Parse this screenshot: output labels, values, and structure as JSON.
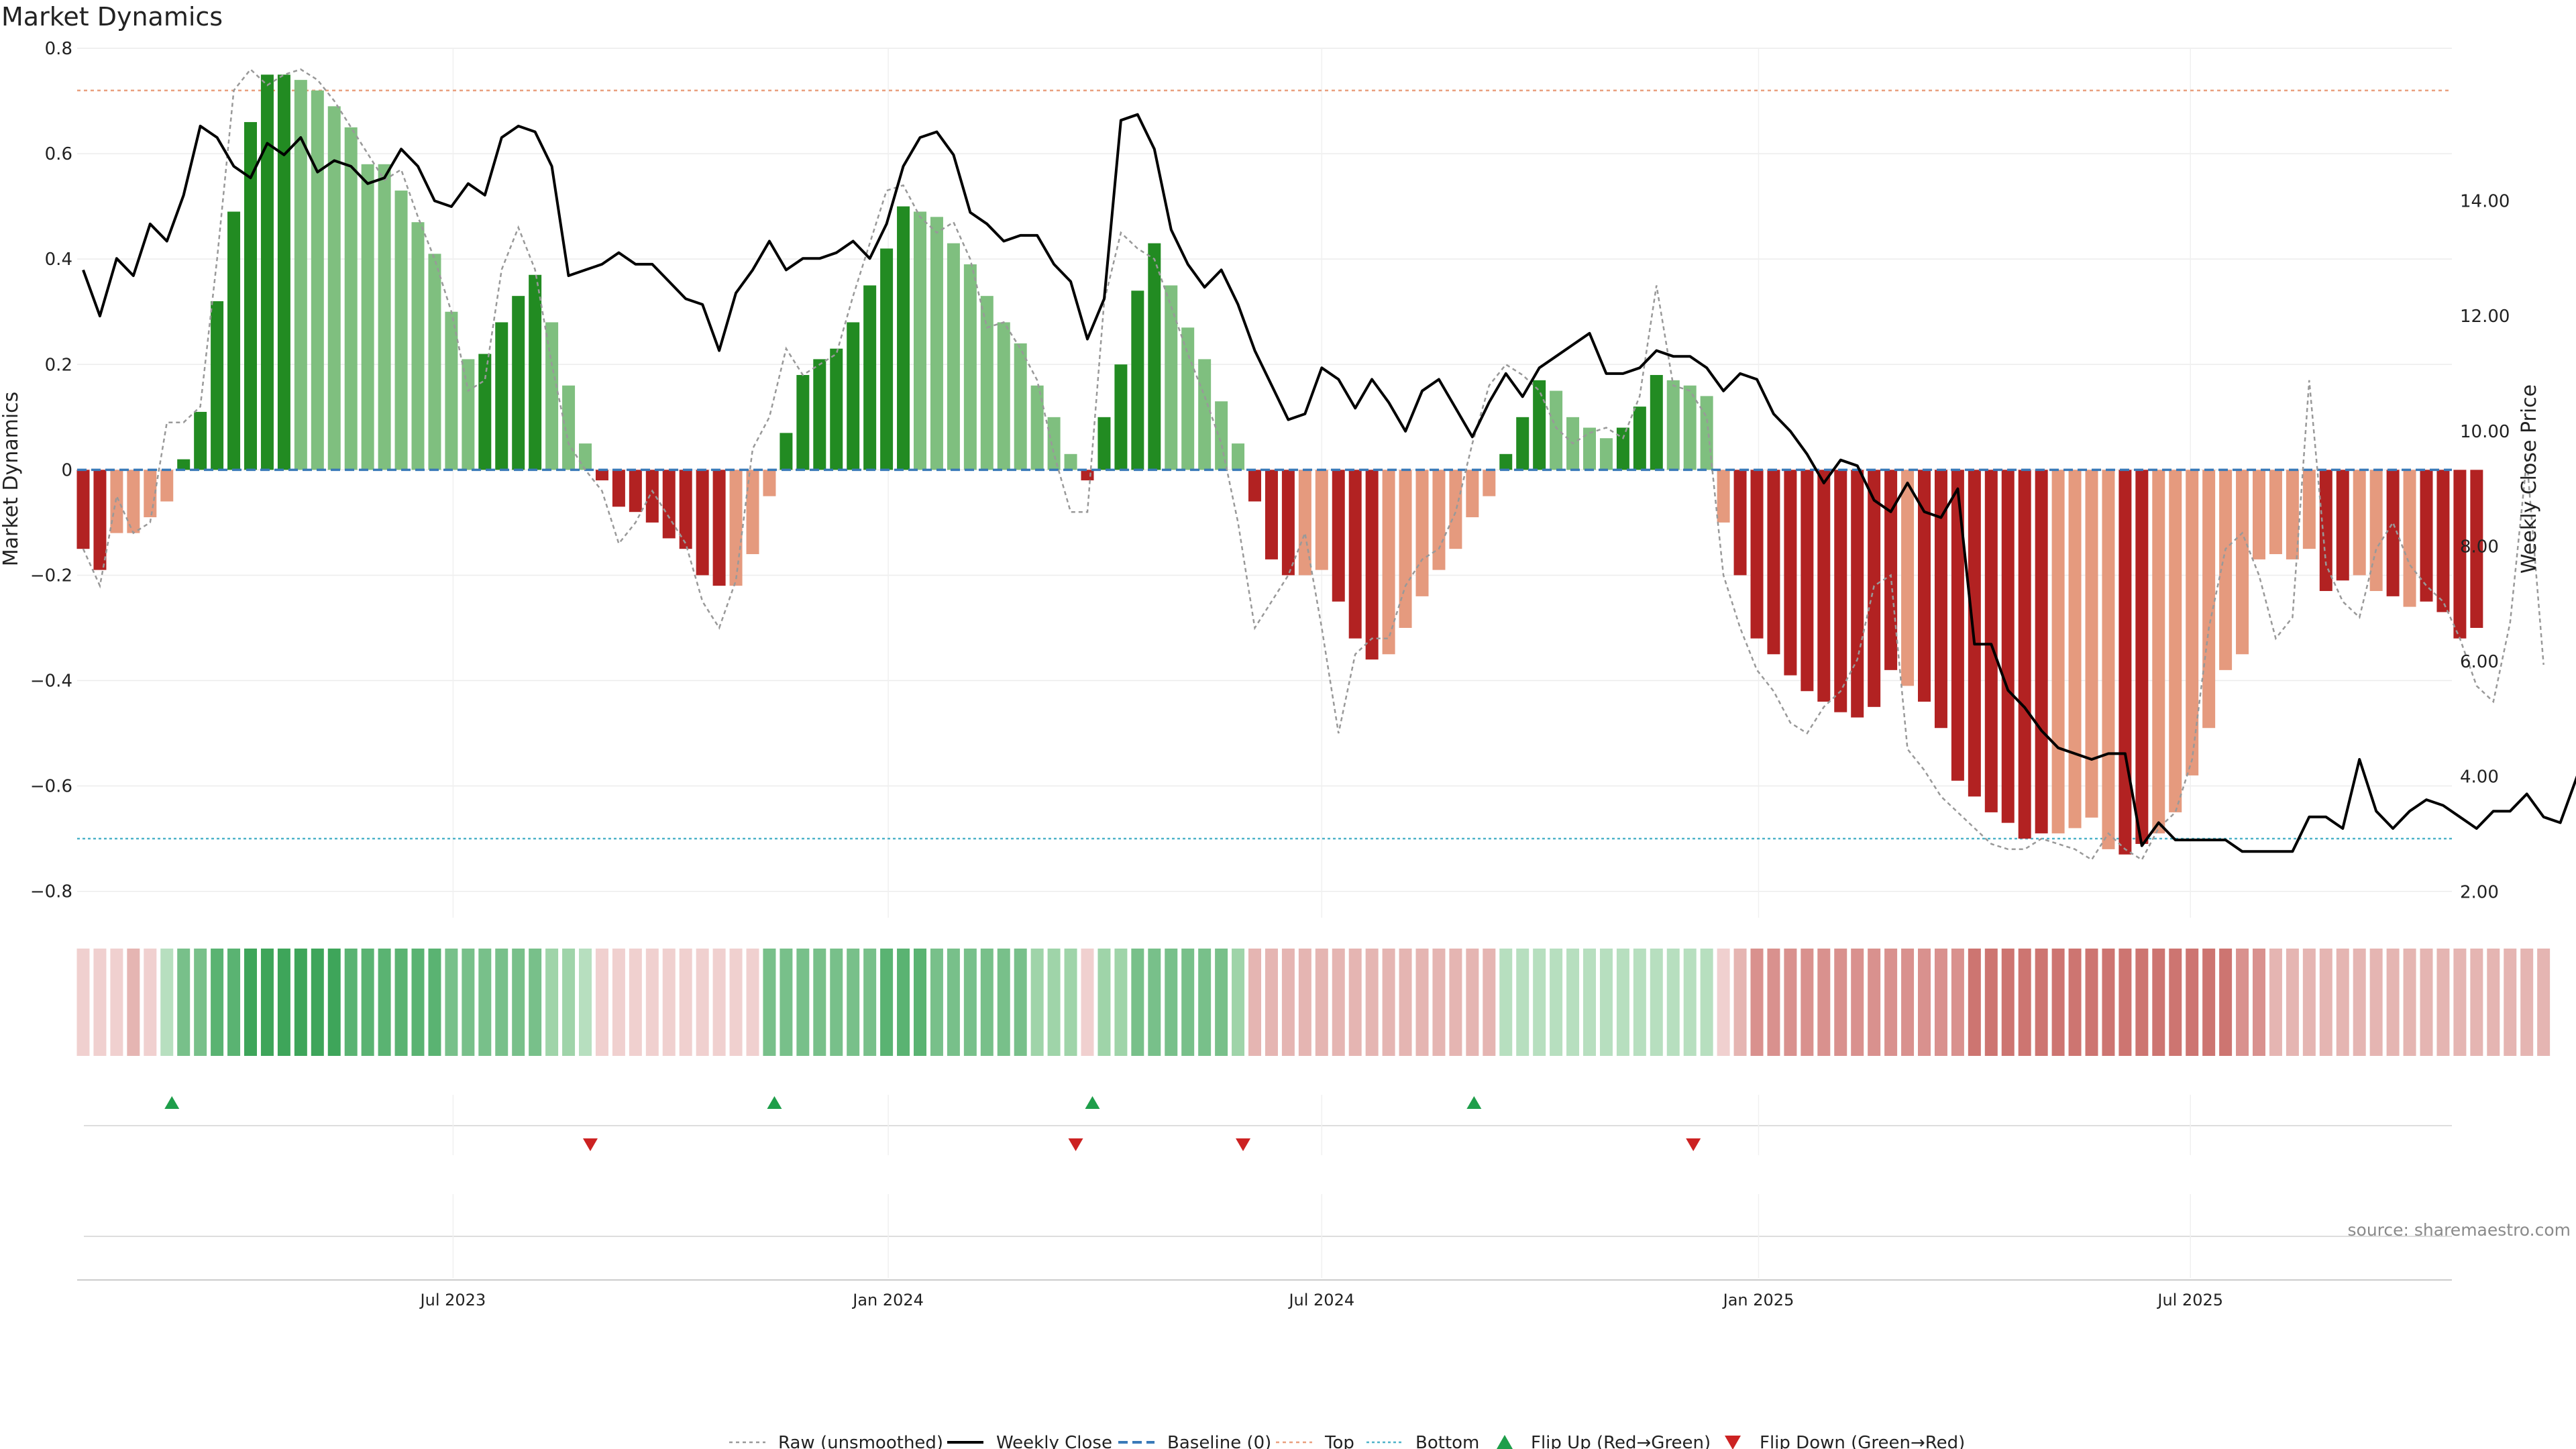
{
  "chart_data": {
    "type": "bar",
    "title": "Market Dynamics",
    "ylabel_left": "Market Dynamics",
    "ylabel_right": "Weekly Close Price",
    "source": "source: sharemaestro.com",
    "ylim_left": [
      -0.85,
      0.8
    ],
    "ylim_right": [
      1.55,
      16.65
    ],
    "yticks_left": [
      "0.8",
      "0.6",
      "0.4",
      "0.2",
      "0",
      "−0.2",
      "−0.4",
      "−0.6",
      "−0.8"
    ],
    "yticks_left_values": [
      0.8,
      0.6,
      0.4,
      0.2,
      0,
      -0.2,
      -0.4,
      -0.6,
      -0.8
    ],
    "yticks_right": [
      "14.00",
      "12.00",
      "10.00",
      "8.00",
      "6.00",
      "4.00",
      "2.00"
    ],
    "yticks_right_values": [
      14,
      12,
      10,
      8,
      6,
      4,
      2
    ],
    "x_tick_labels": [
      "Jul 2023",
      "Jan 2024",
      "Jul 2024",
      "Jan 2025",
      "Jul 2025"
    ],
    "x_tick_week_index": [
      22.1,
      48.1,
      74.0,
      100.1,
      125.9
    ],
    "top_level": 0.72,
    "bottom_level": -0.7,
    "baseline": 0,
    "colors": {
      "strong_green": "#228b22",
      "light_green": "#7fbf7f",
      "strong_red": "#b22222",
      "light_red": "#e59a7e",
      "weekly_close": "#000000",
      "raw": "#999999",
      "baseline": "#3a7ab8",
      "top": "#e9a07f",
      "bottom": "#4fb3c9",
      "flip_up": "#1e9e4a",
      "flip_down": "#cc2222"
    },
    "bar_values": [
      -0.15,
      -0.19,
      -0.12,
      -0.12,
      -0.09,
      -0.06,
      0.02,
      0.11,
      0.32,
      0.49,
      0.66,
      0.75,
      0.75,
      0.74,
      0.72,
      0.69,
      0.65,
      0.58,
      0.58,
      0.53,
      0.47,
      0.41,
      0.3,
      0.21,
      0.22,
      0.28,
      0.33,
      0.37,
      0.28,
      0.16,
      0.05,
      -0.02,
      -0.07,
      -0.08,
      -0.1,
      -0.13,
      -0.15,
      -0.2,
      -0.22,
      -0.22,
      -0.16,
      -0.05,
      0.07,
      0.18,
      0.21,
      0.23,
      0.28,
      0.35,
      0.42,
      0.5,
      0.49,
      0.48,
      0.43,
      0.39,
      0.33,
      0.28,
      0.24,
      0.16,
      0.1,
      0.03,
      -0.02,
      0.1,
      0.2,
      0.34,
      0.43,
      0.35,
      0.27,
      0.21,
      0.13,
      0.05,
      -0.06,
      -0.17,
      -0.2,
      -0.2,
      -0.19,
      -0.25,
      -0.32,
      -0.36,
      -0.35,
      -0.3,
      -0.24,
      -0.19,
      -0.15,
      -0.09,
      -0.05,
      0.03,
      0.1,
      0.17,
      0.15,
      0.1,
      0.08,
      0.06,
      0.08,
      0.12,
      0.18,
      0.17,
      0.16,
      0.14,
      -0.1,
      -0.2,
      -0.32,
      -0.35,
      -0.39,
      -0.42,
      -0.44,
      -0.46,
      -0.47,
      -0.45,
      -0.38,
      -0.41,
      -0.44,
      -0.49,
      -0.59,
      -0.62,
      -0.65,
      -0.67,
      -0.7,
      -0.69,
      -0.69,
      -0.68,
      -0.66,
      -0.72,
      -0.73,
      -0.71,
      -0.69,
      -0.65,
      -0.58,
      -0.49,
      -0.38,
      -0.35,
      -0.17,
      -0.16,
      -0.17,
      -0.15,
      -0.23,
      -0.21,
      -0.2,
      -0.23,
      -0.24,
      -0.26,
      -0.25,
      -0.27,
      -0.32,
      -0.3
    ],
    "bar_shades": [
      "S",
      "S",
      "L",
      "L",
      "L",
      "L",
      "S",
      "S",
      "S",
      "S",
      "S",
      "S",
      "S",
      "L",
      "L",
      "L",
      "L",
      "L",
      "L",
      "L",
      "L",
      "L",
      "L",
      "L",
      "S",
      "S",
      "S",
      "S",
      "L",
      "L",
      "L",
      "S",
      "S",
      "S",
      "S",
      "S",
      "S",
      "S",
      "S",
      "L",
      "L",
      "L",
      "S",
      "S",
      "S",
      "S",
      "S",
      "S",
      "S",
      "S",
      "L",
      "L",
      "L",
      "L",
      "L",
      "L",
      "L",
      "L",
      "L",
      "L",
      "S",
      "S",
      "S",
      "S",
      "S",
      "L",
      "L",
      "L",
      "L",
      "L",
      "S",
      "S",
      "S",
      "L",
      "L",
      "S",
      "S",
      "S",
      "L",
      "L",
      "L",
      "L",
      "L",
      "L",
      "L",
      "S",
      "S",
      "S",
      "L",
      "L",
      "L",
      "L",
      "S",
      "S",
      "S",
      "L",
      "L",
      "L",
      "L",
      "S",
      "S",
      "S",
      "S",
      "S",
      "S",
      "S",
      "S",
      "S",
      "S",
      "L",
      "S",
      "S",
      "S",
      "S",
      "S",
      "S",
      "S",
      "S",
      "L",
      "L",
      "L",
      "L",
      "S",
      "S",
      "L",
      "L",
      "L",
      "L",
      "L",
      "L",
      "L",
      "L",
      "L",
      "L",
      "S",
      "S",
      "L",
      "L",
      "S",
      "L",
      "S",
      "S",
      "S",
      "S",
      "S",
      "S",
      "L",
      "S",
      "S"
    ],
    "raw_values": [
      -0.15,
      -0.22,
      -0.05,
      -0.12,
      -0.1,
      0.09,
      0.09,
      0.12,
      0.4,
      0.72,
      0.76,
      0.73,
      0.75,
      0.76,
      0.74,
      0.7,
      0.65,
      0.6,
      0.55,
      0.57,
      0.48,
      0.4,
      0.3,
      0.15,
      0.17,
      0.38,
      0.46,
      0.38,
      0.2,
      0.05,
      0.0,
      -0.04,
      -0.14,
      -0.1,
      -0.04,
      -0.09,
      -0.14,
      -0.25,
      -0.3,
      -0.21,
      0.04,
      0.1,
      0.23,
      0.18,
      0.2,
      0.22,
      0.33,
      0.43,
      0.53,
      0.54,
      0.48,
      0.45,
      0.47,
      0.4,
      0.27,
      0.28,
      0.23,
      0.17,
      0.03,
      -0.08,
      -0.08,
      0.32,
      0.45,
      0.42,
      0.4,
      0.31,
      0.22,
      0.14,
      0.05,
      -0.1,
      -0.3,
      -0.25,
      -0.2,
      -0.12,
      -0.3,
      -0.5,
      -0.35,
      -0.32,
      -0.32,
      -0.22,
      -0.17,
      -0.15,
      -0.08,
      0.05,
      0.16,
      0.2,
      0.18,
      0.15,
      0.08,
      0.05,
      0.07,
      0.08,
      0.06,
      0.14,
      0.35,
      0.16,
      0.15,
      0.1,
      -0.2,
      -0.3,
      -0.38,
      -0.42,
      -0.48,
      -0.5,
      -0.45,
      -0.42,
      -0.36,
      -0.22,
      -0.2,
      -0.53,
      -0.57,
      -0.62,
      -0.65,
      -0.68,
      -0.71,
      -0.72,
      -0.72,
      -0.7,
      -0.71,
      -0.72,
      -0.74,
      -0.69,
      -0.72,
      -0.74,
      -0.68,
      -0.65,
      -0.55,
      -0.3,
      -0.15,
      -0.12,
      -0.2,
      -0.32,
      -0.28,
      0.17,
      -0.18,
      -0.25,
      -0.28,
      -0.15,
      -0.1,
      -0.18,
      -0.22,
      -0.25,
      -0.32,
      -0.41,
      -0.44,
      -0.29,
      0.02,
      -0.37
    ],
    "close_values": [
      12.8,
      12.0,
      13.0,
      12.7,
      13.6,
      13.3,
      14.1,
      15.3,
      15.1,
      14.6,
      14.4,
      15.0,
      14.8,
      15.1,
      14.5,
      14.7,
      14.6,
      14.3,
      14.4,
      14.9,
      14.6,
      14.0,
      13.9,
      14.3,
      14.1,
      15.1,
      15.3,
      15.2,
      14.6,
      12.7,
      12.8,
      12.9,
      13.1,
      12.9,
      12.9,
      12.6,
      12.3,
      12.2,
      11.4,
      12.4,
      12.8,
      13.3,
      12.8,
      13.0,
      13.0,
      13.1,
      13.3,
      13.0,
      13.6,
      14.6,
      15.1,
      15.2,
      14.8,
      13.8,
      13.6,
      13.3,
      13.4,
      13.4,
      12.9,
      12.6,
      11.6,
      12.3,
      15.4,
      15.5,
      14.9,
      13.5,
      12.9,
      12.5,
      12.8,
      12.2,
      11.4,
      10.8,
      10.2,
      10.3,
      11.1,
      10.9,
      10.4,
      10.9,
      10.5,
      10.0,
      10.7,
      10.9,
      10.4,
      9.9,
      10.5,
      11.0,
      10.6,
      11.1,
      11.3,
      11.5,
      11.7,
      11.0,
      11.0,
      11.1,
      11.4,
      11.3,
      11.3,
      11.1,
      10.7,
      11.0,
      10.9,
      10.3,
      10.0,
      9.6,
      9.1,
      9.5,
      9.4,
      8.8,
      8.6,
      9.1,
      8.6,
      8.5,
      9.0,
      6.3,
      6.3,
      5.5,
      5.2,
      4.8,
      4.5,
      4.4,
      4.3,
      4.4,
      4.4,
      2.8,
      3.2,
      2.9,
      2.9,
      2.9,
      2.9,
      2.7,
      2.7,
      2.7,
      2.7,
      3.3,
      3.3,
      3.1,
      4.3,
      3.4,
      3.1,
      3.4,
      3.6,
      3.5,
      3.3,
      3.1,
      3.4,
      3.4,
      3.7,
      3.3,
      3.2,
      4.0,
      3.6
    ],
    "regime_strip": {
      "cells": [
        [
          "r",
          1
        ],
        [
          "r",
          1
        ],
        [
          "r",
          1
        ],
        [
          "r",
          2
        ],
        [
          "r",
          1
        ],
        [
          "g",
          1
        ],
        [
          "g",
          3
        ],
        [
          "g",
          3
        ],
        [
          "g",
          4
        ],
        [
          "g",
          4
        ],
        [
          "g",
          5
        ],
        [
          "g",
          5
        ],
        [
          "g",
          5
        ],
        [
          "g",
          5
        ],
        [
          "g",
          5
        ],
        [
          "g",
          5
        ],
        [
          "g",
          4
        ],
        [
          "g",
          4
        ],
        [
          "g",
          4
        ],
        [
          "g",
          4
        ],
        [
          "g",
          4
        ],
        [
          "g",
          4
        ],
        [
          "g",
          3
        ],
        [
          "g",
          3
        ],
        [
          "g",
          3
        ],
        [
          "g",
          3
        ],
        [
          "g",
          3
        ],
        [
          "g",
          3
        ],
        [
          "g",
          2
        ],
        [
          "g",
          2
        ],
        [
          "g",
          1
        ],
        [
          "r",
          1
        ],
        [
          "r",
          1
        ],
        [
          "r",
          1
        ],
        [
          "r",
          1
        ],
        [
          "r",
          1
        ],
        [
          "r",
          1
        ],
        [
          "r",
          1
        ],
        [
          "r",
          1
        ],
        [
          "r",
          1
        ],
        [
          "r",
          1
        ],
        [
          "g",
          3
        ],
        [
          "g",
          3
        ],
        [
          "g",
          3
        ],
        [
          "g",
          3
        ],
        [
          "g",
          3
        ],
        [
          "g",
          3
        ],
        [
          "g",
          3
        ],
        [
          "g",
          4
        ],
        [
          "g",
          4
        ],
        [
          "g",
          4
        ],
        [
          "g",
          3
        ],
        [
          "g",
          3
        ],
        [
          "g",
          3
        ],
        [
          "g",
          3
        ],
        [
          "g",
          3
        ],
        [
          "g",
          3
        ],
        [
          "g",
          2
        ],
        [
          "g",
          2
        ],
        [
          "g",
          2
        ],
        [
          "r",
          1
        ],
        [
          "g",
          2
        ],
        [
          "g",
          2
        ],
        [
          "g",
          3
        ],
        [
          "g",
          3
        ],
        [
          "g",
          3
        ],
        [
          "g",
          3
        ],
        [
          "g",
          3
        ],
        [
          "g",
          3
        ],
        [
          "g",
          2
        ],
        [
          "r",
          2
        ],
        [
          "r",
          2
        ],
        [
          "r",
          2
        ],
        [
          "r",
          2
        ],
        [
          "r",
          2
        ],
        [
          "r",
          2
        ],
        [
          "r",
          2
        ],
        [
          "r",
          2
        ],
        [
          "r",
          2
        ],
        [
          "r",
          2
        ],
        [
          "r",
          2
        ],
        [
          "r",
          2
        ],
        [
          "r",
          2
        ],
        [
          "r",
          2
        ],
        [
          "r",
          2
        ],
        [
          "g",
          1
        ],
        [
          "g",
          1
        ],
        [
          "g",
          1
        ],
        [
          "g",
          1
        ],
        [
          "g",
          1
        ],
        [
          "g",
          1
        ],
        [
          "g",
          1
        ],
        [
          "g",
          1
        ],
        [
          "g",
          1
        ],
        [
          "g",
          1
        ],
        [
          "g",
          1
        ],
        [
          "g",
          1
        ],
        [
          "g",
          1
        ],
        [
          "r",
          1
        ],
        [
          "r",
          2
        ],
        [
          "r",
          3
        ],
        [
          "r",
          3
        ],
        [
          "r",
          3
        ],
        [
          "r",
          3
        ],
        [
          "r",
          3
        ],
        [
          "r",
          3
        ],
        [
          "r",
          3
        ],
        [
          "r",
          3
        ],
        [
          "r",
          3
        ],
        [
          "r",
          3
        ],
        [
          "r",
          3
        ],
        [
          "r",
          3
        ],
        [
          "r",
          3
        ],
        [
          "r",
          4
        ],
        [
          "r",
          4
        ],
        [
          "r",
          4
        ],
        [
          "r",
          4
        ],
        [
          "r",
          4
        ],
        [
          "r",
          4
        ],
        [
          "r",
          4
        ],
        [
          "r",
          4
        ],
        [
          "r",
          4
        ],
        [
          "r",
          4
        ],
        [
          "r",
          4
        ],
        [
          "r",
          4
        ],
        [
          "r",
          4
        ],
        [
          "r",
          4
        ],
        [
          "r",
          4
        ],
        [
          "r",
          4
        ],
        [
          "r",
          3
        ],
        [
          "r",
          3
        ],
        [
          "r",
          2
        ],
        [
          "r",
          2
        ],
        [
          "r",
          2
        ],
        [
          "r",
          2
        ],
        [
          "r",
          2
        ],
        [
          "r",
          2
        ],
        [
          "r",
          2
        ],
        [
          "r",
          2
        ],
        [
          "r",
          2
        ],
        [
          "r",
          2
        ],
        [
          "r",
          2
        ],
        [
          "r",
          2
        ],
        [
          "r",
          2
        ],
        [
          "r",
          2
        ],
        [
          "r",
          2
        ],
        [
          "r",
          2
        ],
        [
          "r",
          2
        ]
      ]
    },
    "flip_up_week_index": [
      5.3,
      41.3,
      60.3,
      83.1
    ],
    "flip_down_week_index": [
      30.3,
      59.3,
      69.3,
      96.2
    ]
  },
  "legend": {
    "raw": "Raw (unsmoothed)",
    "close": "Weekly Close",
    "baseline": "Baseline (0)",
    "top": "Top",
    "bottom": "Bottom",
    "flip_up": "Flip Up (Red→Green)",
    "flip_down": "Flip Down (Green→Red)"
  }
}
